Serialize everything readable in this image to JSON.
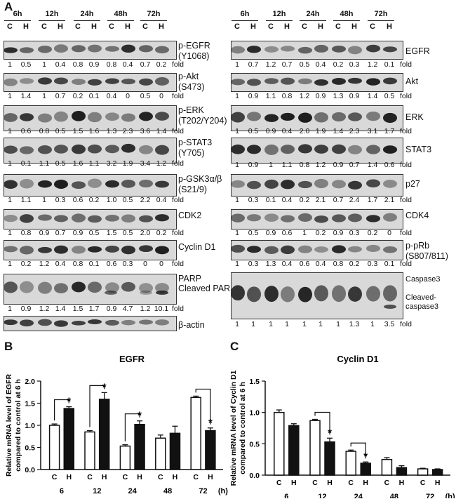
{
  "panels": {
    "a": "A",
    "b": "B",
    "c": "C"
  },
  "blots": {
    "time_points": [
      "6h",
      "12h",
      "24h",
      "48h",
      "72h"
    ],
    "lane_labels": [
      "C",
      "H",
      "C",
      "H",
      "C",
      "H",
      "C",
      "H",
      "C",
      "H"
    ],
    "fold_word": "fold",
    "left": [
      {
        "label": "p-EGFR\n(Y1068)",
        "folds": [
          "1",
          "0.5",
          "1",
          "0.4",
          "0.8",
          "0.9",
          "0.8",
          "0.4",
          "0.7",
          "0.2"
        ]
      },
      {
        "label": "p-Akt\n(S473)",
        "folds": [
          "1",
          "1.4",
          "1",
          "0.7",
          "0.2",
          "0.1",
          "0.4",
          "0",
          "0.5",
          "0"
        ]
      },
      {
        "label": "p-ERK\n(T202/Y204)",
        "folds": [
          "1",
          "0.6",
          "0.8",
          "0.5",
          "1.5",
          "1.6",
          "1.3",
          "2.3",
          "3.6",
          "1.4"
        ]
      },
      {
        "label": "p-STAT3\n(Y705)",
        "folds": [
          "1",
          "0.1",
          "1.1",
          "0.5",
          "1.6",
          "1.1",
          "3.2",
          "1.9",
          "3.4",
          "1.2"
        ]
      },
      {
        "label": "p-GSK3α/β\n(S21/9)",
        "folds": [
          "1",
          "1.1",
          "1",
          "0.3",
          "0.6",
          "0.2",
          "1.0",
          "0.5",
          "2.2",
          "0.4"
        ]
      },
      {
        "label": "CDK2",
        "folds": [
          "1",
          "0.8",
          "0.9",
          "0.7",
          "0.9",
          "0.5",
          "1.5",
          "0.5",
          "2.0",
          "0.2"
        ]
      },
      {
        "label": "Cyclin D1",
        "folds": [
          "1",
          "0.2",
          "1.2",
          "0.4",
          "0.8",
          "0.1",
          "0.6",
          "0.3",
          "0",
          "0"
        ]
      },
      {
        "label": "PARP\nCleaved PARP",
        "folds": [
          "1",
          "0.9",
          "1.2",
          "1.4",
          "1.5",
          "1.7",
          "0.9",
          "4.7",
          "1.2",
          "10.1"
        ]
      },
      {
        "label": "β-actin",
        "folds": []
      }
    ],
    "right": [
      {
        "label": "EGFR",
        "folds": [
          "1",
          "0.7",
          "1.2",
          "0.7",
          "0.5",
          "0.4",
          "0.2",
          "0.3",
          "1.2",
          "0.1"
        ]
      },
      {
        "label": "Akt",
        "folds": [
          "1",
          "0.9",
          "1.1",
          "0.8",
          "1.2",
          "0.9",
          "1.3",
          "0.9",
          "1.4",
          "0.5"
        ]
      },
      {
        "label": "ERK",
        "folds": [
          "1",
          "0.5",
          "0.9",
          "0.4",
          "2.0",
          "1.9",
          "1.4",
          "2.3",
          "3.1",
          "1.7"
        ]
      },
      {
        "label": "STAT3",
        "folds": [
          "1",
          "0.9",
          "1",
          "1.1",
          "0.8",
          "1.2",
          "0.9",
          "0.7",
          "1.4",
          "0.6"
        ]
      },
      {
        "label": "p27",
        "folds": [
          "1",
          "0.3",
          "0.1",
          "0.4",
          "0.2",
          "2.1",
          "0.7",
          "2.4",
          "1.7",
          "2.1"
        ]
      },
      {
        "label": "CDK4",
        "folds": [
          "1",
          "0.5",
          "0.9",
          "0.6",
          "1",
          "0.2",
          "0.9",
          "0.3",
          "0.2",
          "0"
        ]
      },
      {
        "label": "p-pRb\n(S807/811)",
        "folds": [
          "1",
          "0.3",
          "1.3",
          "0.4",
          "0.6",
          "0.4",
          "0.8",
          "0.2",
          "0.3",
          "0.1"
        ]
      },
      {
        "label": "Caspase3\n\nCleaved-\ncaspase3",
        "folds": [
          "1",
          "1",
          "1",
          "1",
          "1",
          "1",
          "1",
          "1.3",
          "1",
          "3.5"
        ]
      }
    ]
  },
  "chart_data": [
    {
      "type": "bar",
      "title": "EGFR",
      "ylabel": "Relative mRNA level of EGFR compared to control at 6 h",
      "xlabel": "(h)",
      "groups": [
        "6",
        "12",
        "24",
        "48",
        "72"
      ],
      "bar_labels": [
        "C",
        "H"
      ],
      "series": [
        {
          "name": "C",
          "values": [
            1.0,
            0.85,
            0.53,
            0.71,
            1.63
          ],
          "errors": [
            0.03,
            0.03,
            0.03,
            0.07,
            0.03
          ]
        },
        {
          "name": "H",
          "values": [
            1.38,
            1.59,
            1.02,
            0.82,
            0.88
          ],
          "errors": [
            0.04,
            0.15,
            0.08,
            0.16,
            0.06
          ]
        }
      ],
      "ylim": [
        0.0,
        2.0
      ],
      "yticks": [
        "0.0",
        "0.5",
        "1.0",
        "1.5",
        "2.0"
      ],
      "significance": [
        {
          "group": "6",
          "label": "*"
        },
        {
          "group": "12",
          "label": "*"
        },
        {
          "group": "24",
          "label": "*"
        },
        {
          "group": "72",
          "label": "*"
        }
      ]
    },
    {
      "type": "bar",
      "title": "Cyclin D1",
      "ylabel": "Relative mRNA level of Cyclin D1 compared to control at 6 h",
      "xlabel": "(h)",
      "groups": [
        "6",
        "12",
        "24",
        "48",
        "72"
      ],
      "bar_labels": [
        "C",
        "H"
      ],
      "series": [
        {
          "name": "C",
          "values": [
            1.0,
            0.87,
            0.38,
            0.25,
            0.1
          ],
          "errors": [
            0.04,
            0.02,
            0.02,
            0.03,
            0.01
          ]
        },
        {
          "name": "H",
          "values": [
            0.79,
            0.53,
            0.19,
            0.12,
            0.09
          ],
          "errors": [
            0.03,
            0.06,
            0.02,
            0.03,
            0.01
          ]
        }
      ],
      "ylim": [
        0.0,
        1.5
      ],
      "yticks": [
        "0.0",
        "0.5",
        "1.0",
        "1.5"
      ],
      "significance": [
        {
          "group": "12",
          "label": "*"
        },
        {
          "group": "24",
          "label": "*"
        }
      ]
    }
  ]
}
